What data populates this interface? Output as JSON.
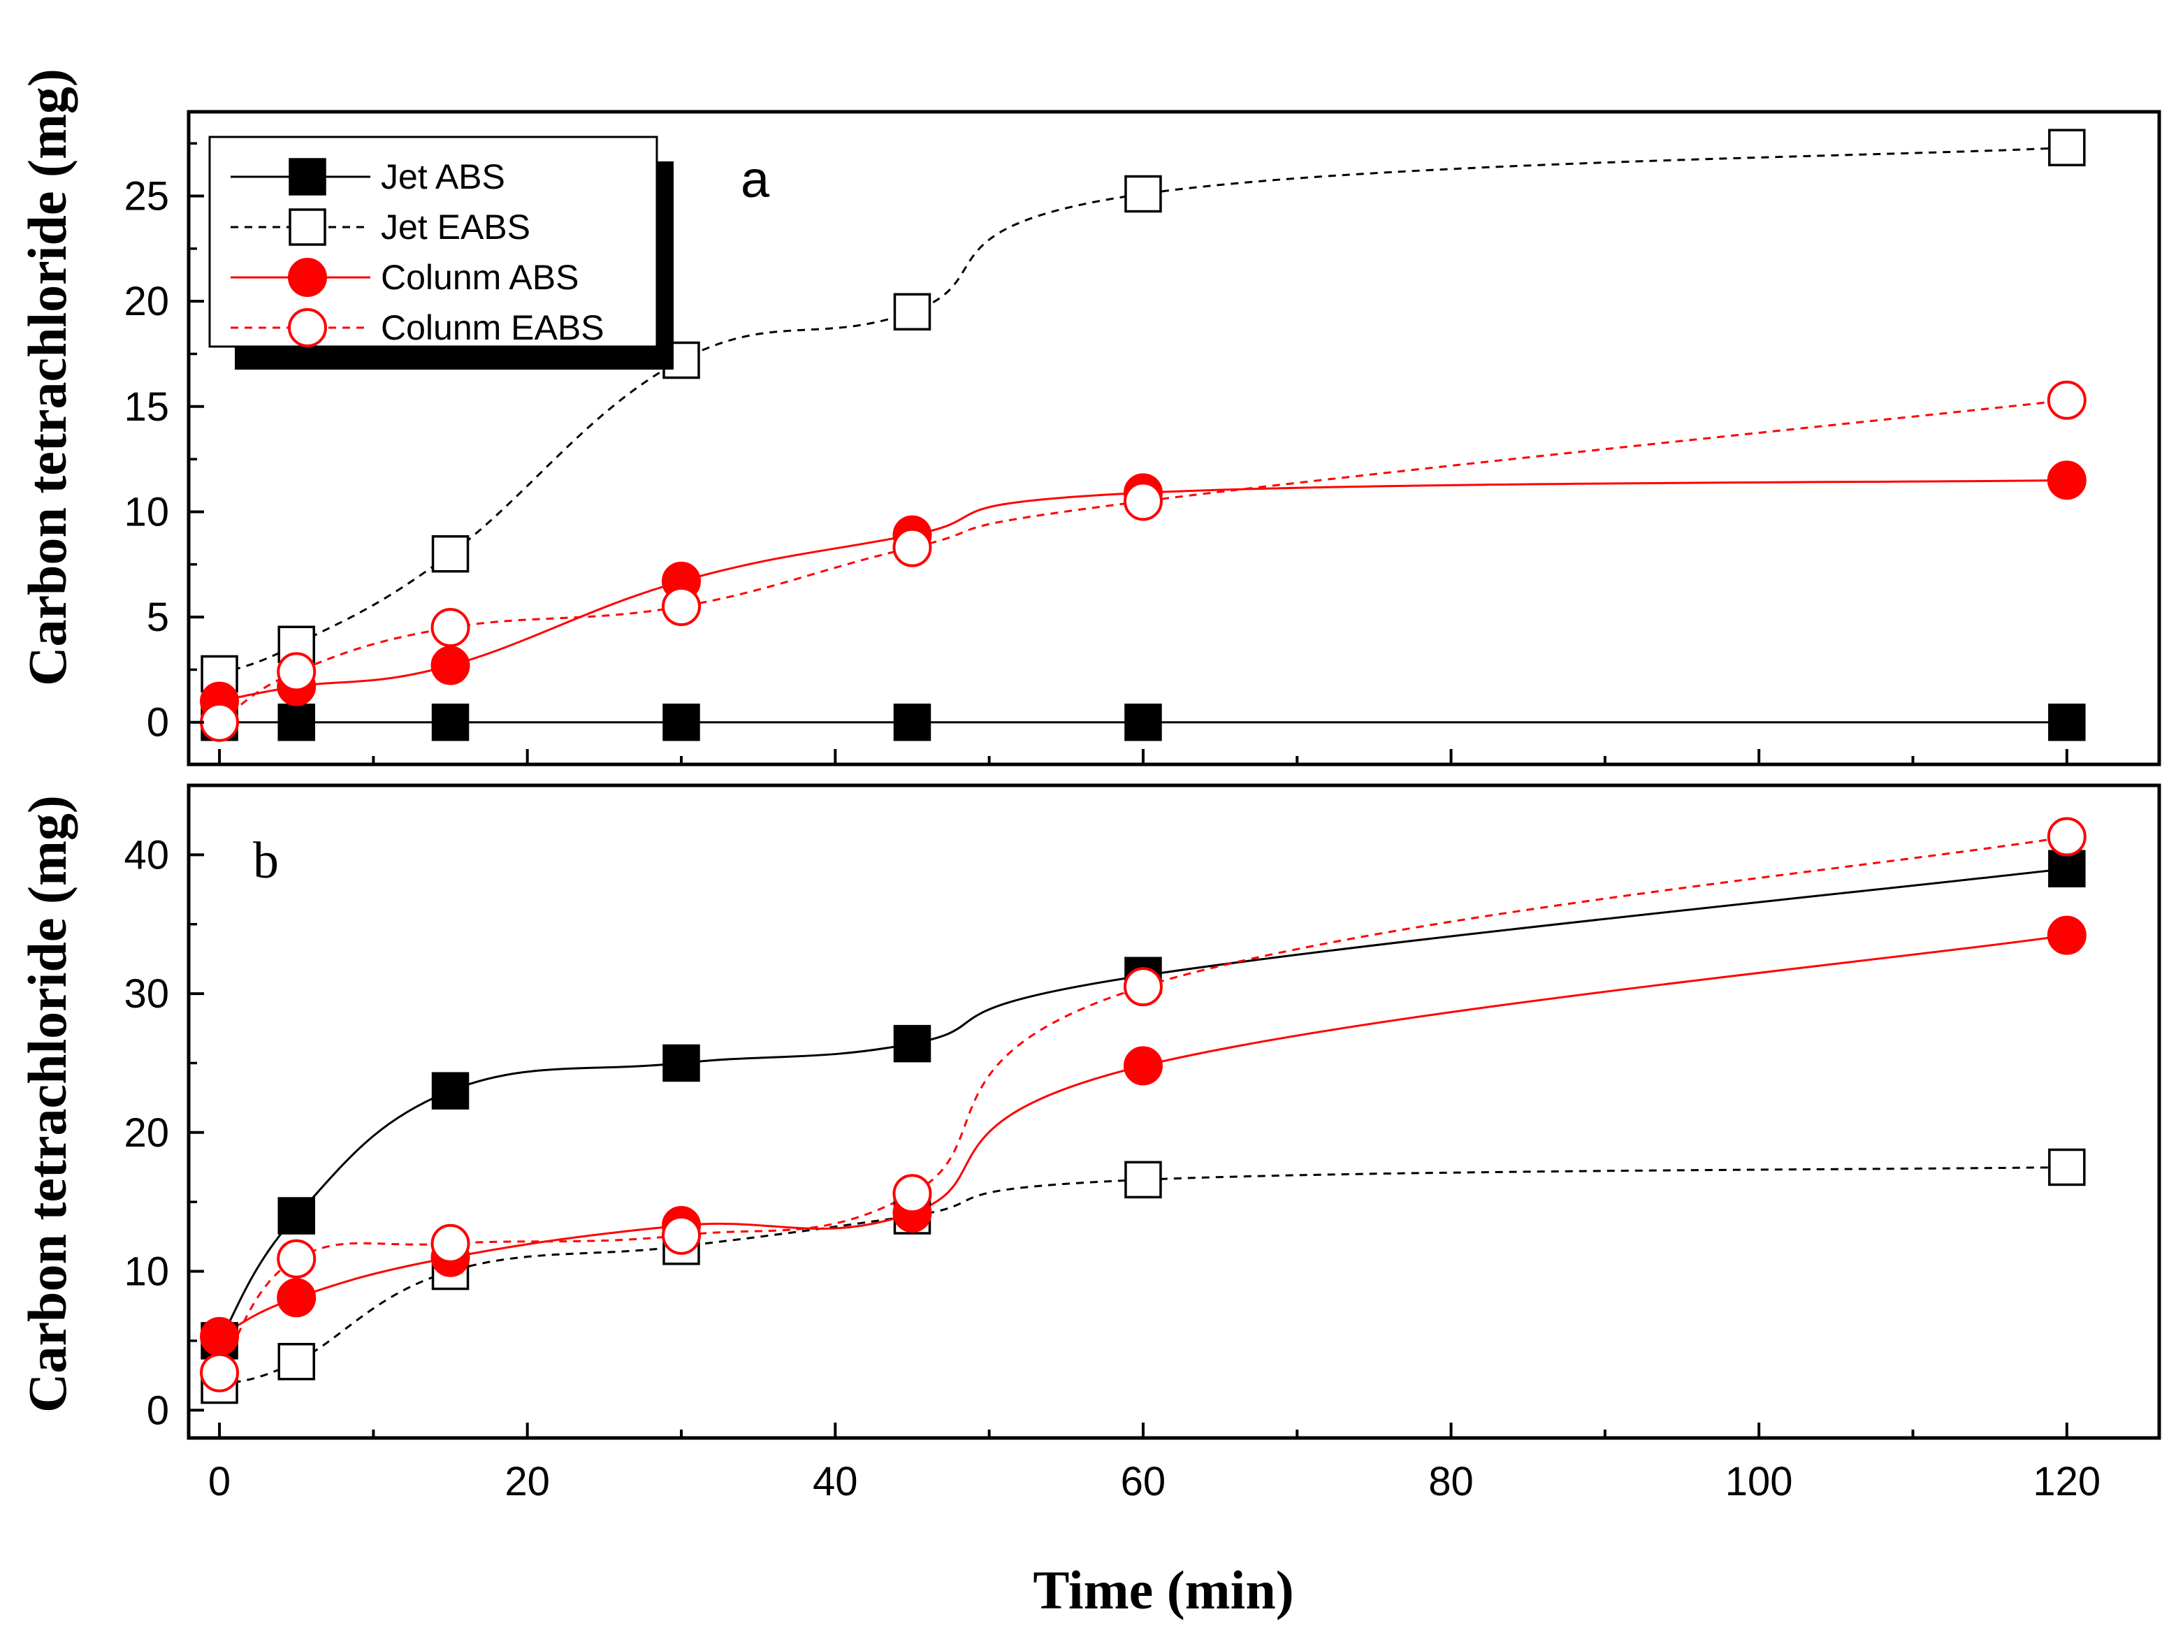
{
  "chart_data": [
    {
      "type": "line",
      "panel_label": "a",
      "ylabel": "Carbon tetrachloride (mg)",
      "xlim": [
        -2,
        126
      ],
      "ylim": [
        -2,
        29
      ],
      "yticks": [
        0,
        5,
        10,
        15,
        20,
        25
      ],
      "legend": {
        "position": "top-left",
        "entries": [
          "Jet ABS",
          "Jet EABS",
          "Colunm ABS",
          "Colunm EABS"
        ]
      },
      "series": [
        {
          "name": "Jet ABS",
          "x": [
            0,
            5,
            15,
            30,
            45,
            60,
            120
          ],
          "values": [
            0,
            0,
            0,
            0,
            0,
            0,
            0
          ],
          "color": "#000000",
          "marker": "square-filled",
          "dash": false
        },
        {
          "name": "Jet EABS",
          "x": [
            0,
            5,
            15,
            30,
            45,
            60,
            120
          ],
          "values": [
            2.3,
            3.7,
            8.0,
            17.2,
            19.5,
            25.1,
            27.3
          ],
          "color": "#000000",
          "marker": "square-open",
          "dash": true
        },
        {
          "name": "Colunm ABS",
          "x": [
            0,
            5,
            15,
            30,
            45,
            60,
            120
          ],
          "values": [
            1.0,
            1.7,
            2.7,
            6.7,
            8.9,
            10.9,
            11.5
          ],
          "color": "#ff0000",
          "marker": "circle-filled",
          "dash": false
        },
        {
          "name": "Colunm EABS",
          "x": [
            0,
            5,
            15,
            30,
            45,
            60,
            120
          ],
          "values": [
            0,
            2.4,
            4.5,
            5.5,
            8.3,
            10.5,
            15.3
          ],
          "color": "#ff0000",
          "marker": "circle-open",
          "dash": true
        }
      ]
    },
    {
      "type": "line",
      "panel_label": "b",
      "ylabel": "Carbon tetrachloride (mg)",
      "xlabel": "Time (min)",
      "xlim": [
        -2,
        126
      ],
      "ylim": [
        -2,
        45
      ],
      "yticks": [
        0,
        10,
        20,
        30,
        40
      ],
      "xticks": [
        0,
        20,
        40,
        60,
        80,
        100,
        120
      ],
      "series": [
        {
          "name": "Jet ABS",
          "x": [
            0,
            5,
            15,
            30,
            45,
            60,
            120
          ],
          "values": [
            5.0,
            14.0,
            23.0,
            25.0,
            26.4,
            31.3,
            39.0
          ],
          "color": "#000000",
          "marker": "square-filled",
          "dash": false
        },
        {
          "name": "Jet EABS",
          "x": [
            0,
            5,
            15,
            30,
            45,
            60,
            120
          ],
          "values": [
            1.8,
            3.5,
            10.0,
            11.8,
            14.0,
            16.6,
            17.5
          ],
          "color": "#000000",
          "marker": "square-open",
          "dash": true
        },
        {
          "name": "Colunm ABS",
          "x": [
            0,
            5,
            15,
            30,
            45,
            60,
            120
          ],
          "values": [
            5.3,
            8.1,
            11.0,
            13.3,
            14.2,
            24.8,
            34.2
          ],
          "color": "#ff0000",
          "marker": "circle-filled",
          "dash": false
        },
        {
          "name": "Colunm EABS",
          "x": [
            0,
            5,
            15,
            30,
            45,
            60,
            120
          ],
          "values": [
            2.7,
            10.9,
            12.0,
            12.6,
            15.6,
            30.5,
            41.3
          ],
          "color": "#ff0000",
          "marker": "circle-open",
          "dash": true
        }
      ]
    }
  ]
}
